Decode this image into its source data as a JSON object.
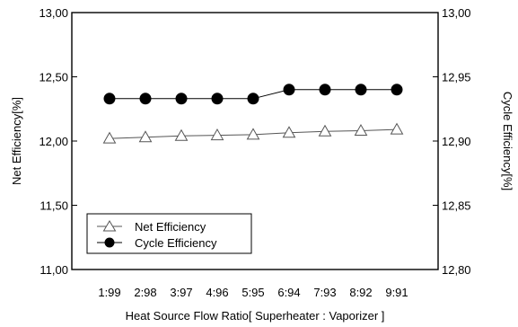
{
  "chart_data": {
    "type": "line",
    "categories": [
      "1:99",
      "2:98",
      "3:97",
      "4:96",
      "5:95",
      "6:94",
      "7:93",
      "8:92",
      "9:91"
    ],
    "xlabel": "Heat Source Flow Ratio[ Superheater : Vaporizer ]",
    "y_left": {
      "label": "Net Efficiency[%]",
      "range": [
        11.0,
        13.0
      ],
      "ticks": [
        "11,00",
        "11,50",
        "12,00",
        "12,50",
        "13,00"
      ],
      "tick_values": [
        11.0,
        11.5,
        12.0,
        12.5,
        13.0
      ]
    },
    "y_right": {
      "label": "Cycle Efficiency[%]",
      "range": [
        12.8,
        13.0
      ],
      "ticks": [
        "12,80",
        "12,85",
        "12,90",
        "12,95",
        "13,00"
      ],
      "tick_values": [
        12.8,
        12.85,
        12.9,
        12.95,
        13.0
      ]
    },
    "series": [
      {
        "name": "Net Efficiency",
        "axis": "left",
        "marker": "open-triangle",
        "values": [
          12.02,
          12.03,
          12.04,
          12.045,
          12.05,
          12.065,
          12.075,
          12.08,
          12.09
        ]
      },
      {
        "name": "Cycle Efficiency",
        "axis": "right",
        "marker": "filled-circle",
        "values": [
          12.933,
          12.933,
          12.933,
          12.933,
          12.933,
          12.94,
          12.94,
          12.94,
          12.94
        ]
      }
    ],
    "legend": {
      "position": "lower-left"
    },
    "grid": false
  }
}
